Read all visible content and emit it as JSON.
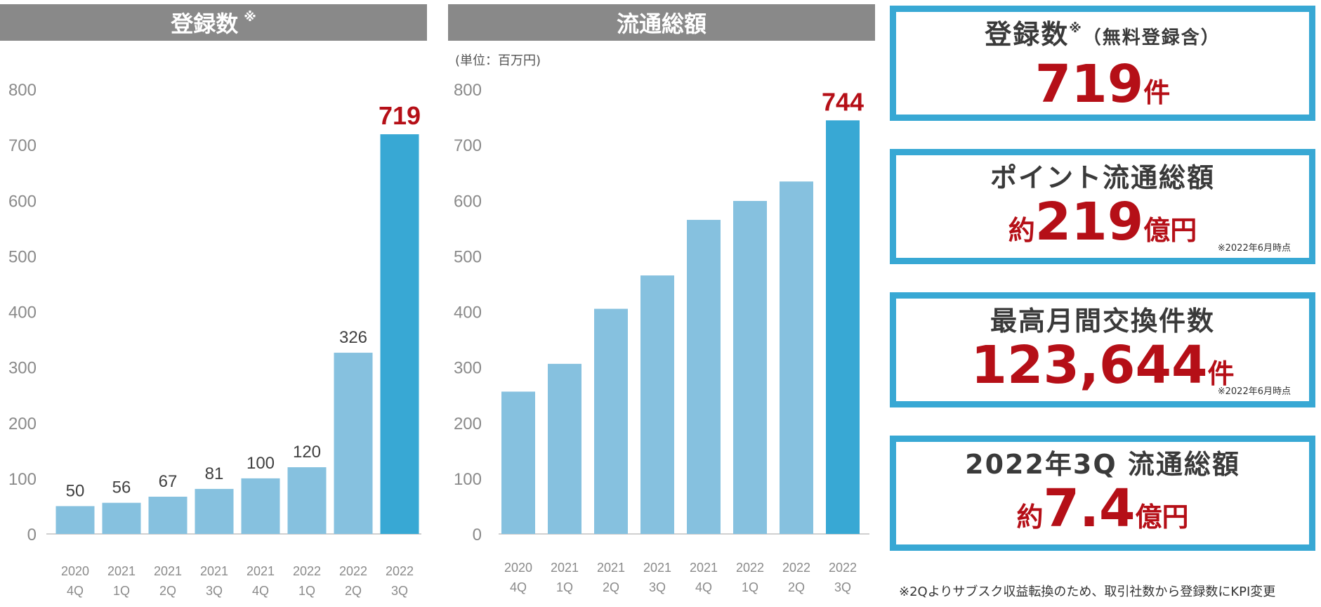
{
  "chart_data": [
    {
      "type": "bar",
      "title": "登録数",
      "title_mark": "※",
      "categories": [
        [
          "2020",
          "4Q"
        ],
        [
          "2021",
          "1Q"
        ],
        [
          "2021",
          "2Q"
        ],
        [
          "2021",
          "3Q"
        ],
        [
          "2021",
          "4Q"
        ],
        [
          "2022",
          "1Q"
        ],
        [
          "2022",
          "2Q"
        ],
        [
          "2022",
          "3Q"
        ]
      ],
      "values": [
        50,
        56,
        67,
        81,
        100,
        120,
        326,
        719
      ],
      "data_labels": [
        "50",
        "56",
        "67",
        "81",
        "100",
        "120",
        "326",
        "719"
      ],
      "ylim": [
        0,
        800
      ],
      "yticks": [
        0,
        100,
        200,
        300,
        400,
        500,
        600,
        700,
        800
      ],
      "grid": false,
      "bar_color": "#86c1df",
      "highlight_color": "#38a8d4",
      "highlight_label_color": "#b50f17"
    },
    {
      "type": "bar",
      "title": "流通総額",
      "unit_label": "(単位：百万円)",
      "categories": [
        [
          "2020",
          "4Q"
        ],
        [
          "2021",
          "1Q"
        ],
        [
          "2021",
          "2Q"
        ],
        [
          "2021",
          "3Q"
        ],
        [
          "2021",
          "4Q"
        ],
        [
          "2022",
          "1Q"
        ],
        [
          "2022",
          "2Q"
        ],
        [
          "2022",
          "3Q"
        ]
      ],
      "values": [
        256,
        306,
        405,
        465,
        565,
        599,
        634,
        744
      ],
      "data_labels": [
        "",
        "",
        "",
        "",
        "",
        "",
        "",
        "744"
      ],
      "ylim": [
        0,
        800
      ],
      "yticks": [
        0,
        100,
        200,
        300,
        400,
        500,
        600,
        700,
        800
      ],
      "grid": false,
      "bar_color": "#86c1df",
      "highlight_color": "#38a8d4",
      "highlight_label_color": "#b50f17"
    }
  ],
  "kpis": {
    "registrations": {
      "title": "登録数",
      "mark": "※",
      "suffix": "（無料登録含）",
      "value": "719",
      "unit": "件"
    },
    "points": {
      "title": "ポイント流通総額",
      "prefix": "約",
      "value": "219",
      "unit": "億円",
      "note": "※2022年6月時点"
    },
    "exchanges": {
      "title": "最高月間交換件数",
      "value": "123,644",
      "unit": "件",
      "note": "※2022年6月時点"
    },
    "gmv": {
      "title": "2022年3Q 流通総額",
      "prefix": "約",
      "value": "7.4",
      "unit": "億円"
    }
  },
  "footnote": "※2Qよりサブスク収益転換のため、取引社数から登録数にKPI変更",
  "colors": {
    "header_bg": "#898989",
    "accent_border": "#38a8d4",
    "value_red": "#b50f17"
  }
}
